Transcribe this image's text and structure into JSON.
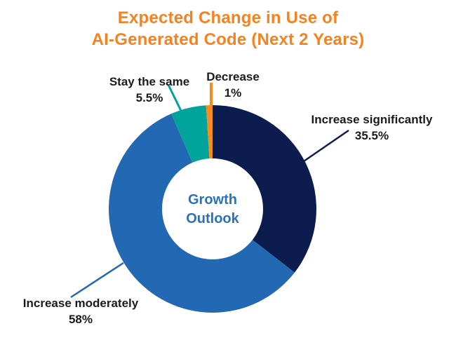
{
  "title": {
    "line1": "Expected Change in Use of",
    "line2": "AI-Generated Code (Next 2 Years)",
    "color": "#F5821F"
  },
  "chart_data": {
    "type": "pie",
    "subtype": "donut",
    "title": "Expected Change in Use of AI-Generated Code (Next 2 Years)",
    "unit": "%",
    "start_angle_deg": -90,
    "direction": "clockwise",
    "legend_position": "none",
    "center_label": {
      "line1": "Growth",
      "line2": "Outlook",
      "color": "#2B72B9"
    },
    "slices": [
      {
        "label": "Increase significantly",
        "value": 35.5,
        "value_label": "35.5%",
        "color": "#0D1C4E"
      },
      {
        "label": "Increase moderately",
        "value": 58,
        "value_label": "58%",
        "color": "#2368B2"
      },
      {
        "label": "Stay the same",
        "value": 5.5,
        "value_label": "5.5%",
        "color": "#01A49B"
      },
      {
        "label": "Decrease",
        "value": 1,
        "value_label": "1%",
        "color": "#F68B1F"
      }
    ]
  }
}
